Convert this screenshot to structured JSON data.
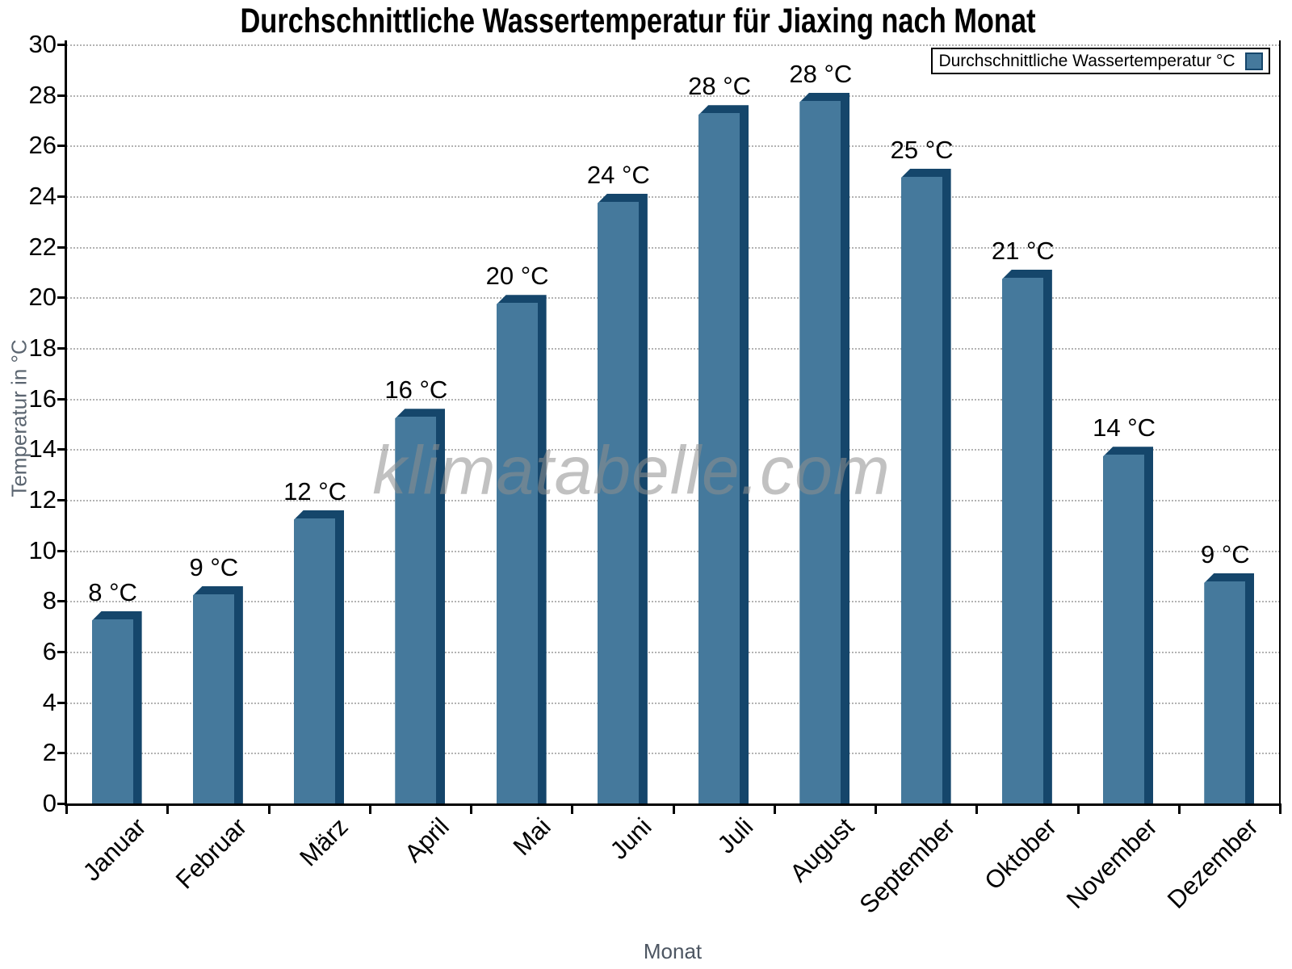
{
  "title": "Durchschnittliche Wassertemperatur für Jiaxing nach Monat",
  "watermark": "klimatabelle.com",
  "legend": {
    "label": "Durchschnittliche Wassertemperatur °C"
  },
  "axes": {
    "x_label": "Monat",
    "y_label": "Temperatur in °C"
  },
  "chart_data": {
    "type": "bar",
    "title": "Durchschnittliche Wassertemperatur für Jiaxing nach Monat",
    "categories": [
      "Januar",
      "Februar",
      "März",
      "April",
      "Mai",
      "Juni",
      "Juli",
      "August",
      "September",
      "Oktober",
      "November",
      "Dezember"
    ],
    "values": [
      8,
      9,
      12,
      16,
      20,
      24,
      28,
      28,
      25,
      21,
      14,
      9
    ],
    "bar_labels": [
      "8 °C",
      "9 °C",
      "12 °C",
      "16 °C",
      "20 °C",
      "24 °C",
      "28 °C",
      "28 °C",
      "25 °C",
      "21 °C",
      "14 °C",
      "9 °C"
    ],
    "bar_heights_c": [
      7.6,
      8.6,
      11.6,
      15.6,
      20.1,
      24.1,
      27.6,
      28.1,
      25.1,
      21.1,
      14.1,
      9.1
    ],
    "xlabel": "Monat",
    "ylabel": "Temperatur in °C",
    "ylim": [
      0,
      30
    ],
    "ytick_step": 2,
    "grid": "horizontal-dotted",
    "legend_entries": [
      "Durchschnittliche Wassertemperatur °C"
    ],
    "legend_position": "top-right",
    "colors": {
      "bar_face": "#45799c",
      "bar_edge": "#15466b",
      "grid": "#b3b3b3",
      "axis": "#000000",
      "axis_title": "#5b6570",
      "watermark": "#8f8f8f",
      "text": "#000000",
      "background": "#ffffff"
    }
  }
}
